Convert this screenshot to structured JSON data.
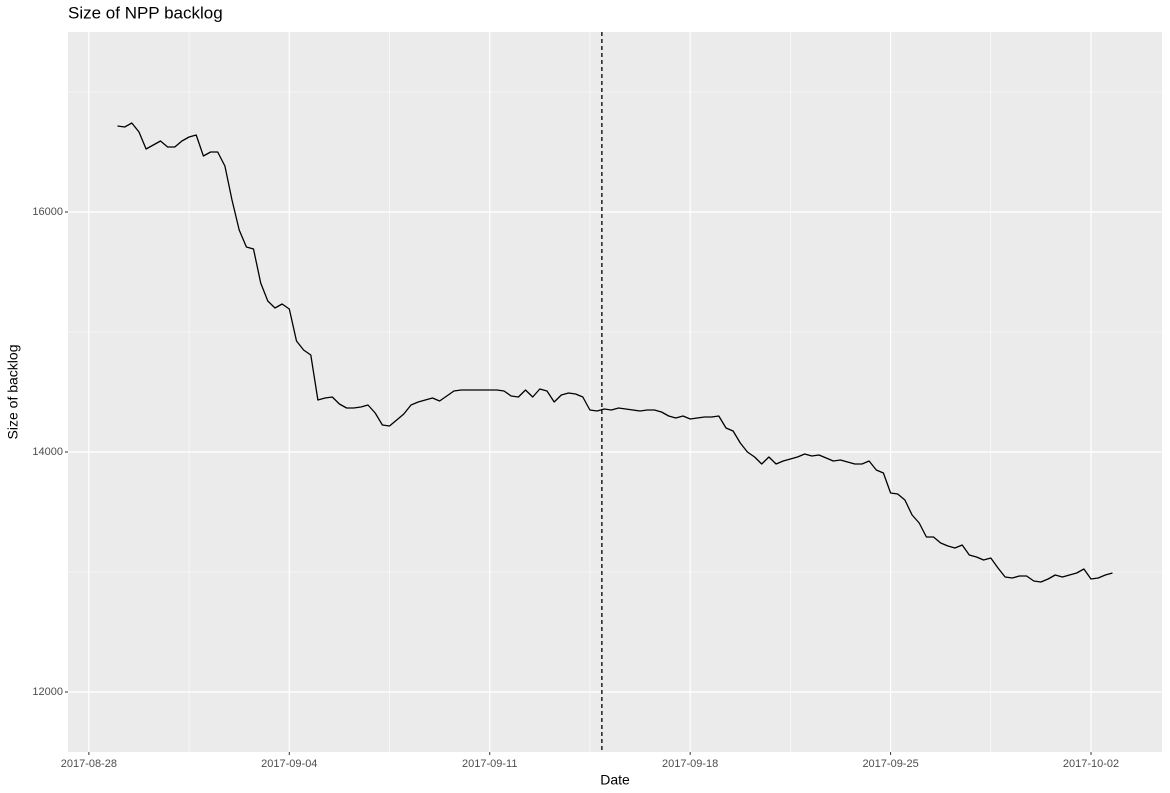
{
  "chart_data": {
    "type": "line",
    "title": "Size of NPP backlog",
    "x_label": "Date",
    "y_label": "Size of backlog",
    "x": [
      "2017-08-29 00:00",
      "2017-08-29 06:00",
      "2017-08-29 12:00",
      "2017-08-29 18:00",
      "2017-08-30 00:00",
      "2017-08-30 06:00",
      "2017-08-30 12:00",
      "2017-08-30 18:00",
      "2017-08-31 00:00",
      "2017-08-31 06:00",
      "2017-08-31 12:00",
      "2017-08-31 18:00",
      "2017-09-01 00:00",
      "2017-09-01 06:00",
      "2017-09-01 12:00",
      "2017-09-01 18:00",
      "2017-09-02 00:00",
      "2017-09-02 06:00",
      "2017-09-02 12:00",
      "2017-09-02 18:00",
      "2017-09-03 00:00",
      "2017-09-03 06:00",
      "2017-09-03 12:00",
      "2017-09-03 18:00",
      "2017-09-04 00:00",
      "2017-09-04 06:00",
      "2017-09-04 12:00",
      "2017-09-04 18:00",
      "2017-09-05 00:00",
      "2017-09-05 06:00",
      "2017-09-05 12:00",
      "2017-09-05 18:00",
      "2017-09-06 00:00",
      "2017-09-06 06:00",
      "2017-09-06 12:00",
      "2017-09-06 18:00",
      "2017-09-07 00:00",
      "2017-09-07 06:00",
      "2017-09-07 12:00",
      "2017-09-07 18:00",
      "2017-09-08 00:00",
      "2017-09-08 06:00",
      "2017-09-08 12:00",
      "2017-09-08 18:00",
      "2017-09-09 00:00",
      "2017-09-09 06:00",
      "2017-09-09 12:00",
      "2017-09-09 18:00",
      "2017-09-10 00:00",
      "2017-09-10 06:00",
      "2017-09-10 12:00",
      "2017-09-10 18:00",
      "2017-09-11 00:00",
      "2017-09-11 06:00",
      "2017-09-11 12:00",
      "2017-09-11 18:00",
      "2017-09-12 00:00",
      "2017-09-12 06:00",
      "2017-09-12 12:00",
      "2017-09-12 18:00",
      "2017-09-13 00:00",
      "2017-09-13 06:00",
      "2017-09-13 12:00",
      "2017-09-13 18:00",
      "2017-09-14 00:00",
      "2017-09-14 06:00",
      "2017-09-14 12:00",
      "2017-09-14 18:00",
      "2017-09-15 00:00",
      "2017-09-15 06:00",
      "2017-09-15 12:00",
      "2017-09-15 18:00",
      "2017-09-16 00:00",
      "2017-09-16 06:00",
      "2017-09-16 12:00",
      "2017-09-16 18:00",
      "2017-09-17 00:00",
      "2017-09-17 06:00",
      "2017-09-17 12:00",
      "2017-09-17 18:00",
      "2017-09-18 00:00",
      "2017-09-18 06:00",
      "2017-09-18 12:00",
      "2017-09-18 18:00",
      "2017-09-19 00:00",
      "2017-09-19 06:00",
      "2017-09-19 12:00",
      "2017-09-19 18:00",
      "2017-09-20 00:00",
      "2017-09-20 06:00",
      "2017-09-20 12:00",
      "2017-09-20 18:00",
      "2017-09-21 00:00",
      "2017-09-21 06:00",
      "2017-09-21 12:00",
      "2017-09-21 18:00",
      "2017-09-22 00:00",
      "2017-09-22 06:00",
      "2017-09-22 12:00",
      "2017-09-22 18:00",
      "2017-09-23 00:00",
      "2017-09-23 06:00",
      "2017-09-23 12:00",
      "2017-09-23 18:00",
      "2017-09-24 00:00",
      "2017-09-24 06:00",
      "2017-09-24 12:00",
      "2017-09-24 18:00",
      "2017-09-25 00:00",
      "2017-09-25 06:00",
      "2017-09-25 12:00",
      "2017-09-25 18:00",
      "2017-09-26 00:00",
      "2017-09-26 06:00",
      "2017-09-26 12:00",
      "2017-09-26 18:00",
      "2017-09-27 00:00",
      "2017-09-27 06:00",
      "2017-09-27 12:00",
      "2017-09-27 18:00",
      "2017-09-28 00:00",
      "2017-09-28 06:00",
      "2017-09-28 12:00",
      "2017-09-28 18:00",
      "2017-09-29 00:00",
      "2017-09-29 06:00",
      "2017-09-29 12:00",
      "2017-09-29 18:00",
      "2017-09-30 00:00",
      "2017-09-30 06:00",
      "2017-09-30 12:00",
      "2017-09-30 18:00",
      "2017-10-01 00:00",
      "2017-10-01 06:00",
      "2017-10-01 12:00",
      "2017-10-01 18:00",
      "2017-10-02 00:00",
      "2017-10-02 06:00",
      "2017-10-02 12:00",
      "2017-10-02 18:00"
    ],
    "series": [
      {
        "color": "#000000",
        "values": [
          16717,
          16708,
          16742,
          16667,
          16525,
          16558,
          16592,
          16542,
          16542,
          16592,
          16625,
          16642,
          16467,
          16500,
          16500,
          16383,
          16100,
          15850,
          15708,
          15692,
          15408,
          15258,
          15200,
          15233,
          15192,
          14925,
          14850,
          14808,
          14433,
          14450,
          14458,
          14400,
          14367,
          14367,
          14375,
          14392,
          14325,
          14225,
          14217,
          14267,
          14317,
          14392,
          14417,
          14433,
          14450,
          14425,
          14467,
          14508,
          14517,
          14517,
          14517,
          14517,
          14517,
          14517,
          14508,
          14467,
          14458,
          14517,
          14458,
          14525,
          14508,
          14417,
          14475,
          14492,
          14483,
          14458,
          14350,
          14342,
          14358,
          14350,
          14367,
          14358,
          14350,
          14342,
          14350,
          14350,
          14333,
          14300,
          14283,
          14300,
          14275,
          14283,
          14292,
          14292,
          14300,
          14200,
          14175,
          14075,
          14000,
          13958,
          13900,
          13958,
          13900,
          13925,
          13942,
          13958,
          13983,
          13967,
          13975,
          13950,
          13925,
          13933,
          13917,
          13900,
          13900,
          13925,
          13850,
          13825,
          13658,
          13650,
          13600,
          13475,
          13408,
          13292,
          13292,
          13242,
          13217,
          13200,
          13225,
          13142,
          13125,
          13100,
          13117,
          13033,
          12958,
          12950,
          12967,
          12967,
          12925,
          12917,
          12942,
          12975,
          12958,
          12975,
          12992,
          13025,
          12942,
          12950,
          12975,
          12992
        ]
      }
    ],
    "vline_x": "2017-09-14 22:00",
    "xlim": [
      "2017-08-27 06:30",
      "2017-10-04 11:30"
    ],
    "xticks": [
      "2017-08-28",
      "2017-09-04",
      "2017-09-11",
      "2017-09-18",
      "2017-09-25",
      "2017-10-02"
    ],
    "ylim": [
      11500,
      17500
    ],
    "yticks": [
      12000,
      14000,
      16000
    ],
    "grid": true
  }
}
